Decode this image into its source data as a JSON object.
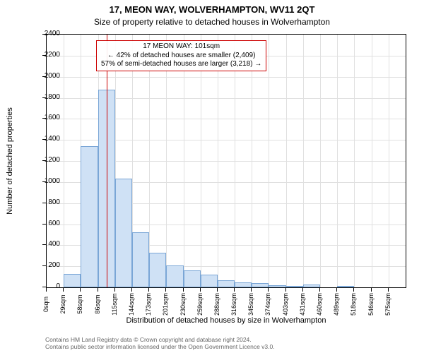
{
  "title_line1": "17, MEON WAY, WOLVERHAMPTON, WV11 2QT",
  "title_line2": "Size of property relative to detached houses in Wolverhampton",
  "ylabel": "Number of detached properties",
  "xlabel": "Distribution of detached houses by size in Wolverhampton",
  "footer_line1": "Contains HM Land Registry data © Crown copyright and database right 2024.",
  "footer_line2": "Contains public sector information licensed under the Open Government Licence v3.0.",
  "chart": {
    "type": "histogram",
    "plot_bg": "#ffffff",
    "grid_color": "#e0e0e0",
    "axis_color": "#000000",
    "bar_fill": "#cfe1f5",
    "bar_border": "#7aa6d6",
    "ref_line_color": "#cc0000",
    "info_border_color": "#cc0000",
    "ylim": [
      0,
      2400
    ],
    "ytick_step": 200,
    "xticks": [
      "0sqm",
      "29sqm",
      "58sqm",
      "86sqm",
      "115sqm",
      "144sqm",
      "173sqm",
      "201sqm",
      "230sqm",
      "259sqm",
      "288sqm",
      "316sqm",
      "345sqm",
      "374sqm",
      "403sqm",
      "431sqm",
      "460sqm",
      "489sqm",
      "518sqm",
      "546sqm",
      "575sqm"
    ],
    "bar_width_ratio": 1.0,
    "values": [
      0,
      130,
      1340,
      1880,
      1030,
      520,
      330,
      210,
      160,
      120,
      70,
      50,
      40,
      20,
      10,
      30,
      0,
      15,
      0,
      0,
      0
    ],
    "reference_value_sqm": 101,
    "x_max_sqm": 604,
    "info_box": {
      "line1": "17 MEON WAY: 101sqm",
      "line2": "← 42% of detached houses are smaller (2,409)",
      "line3": "57% of semi-detached houses are larger (3,218) →"
    }
  }
}
